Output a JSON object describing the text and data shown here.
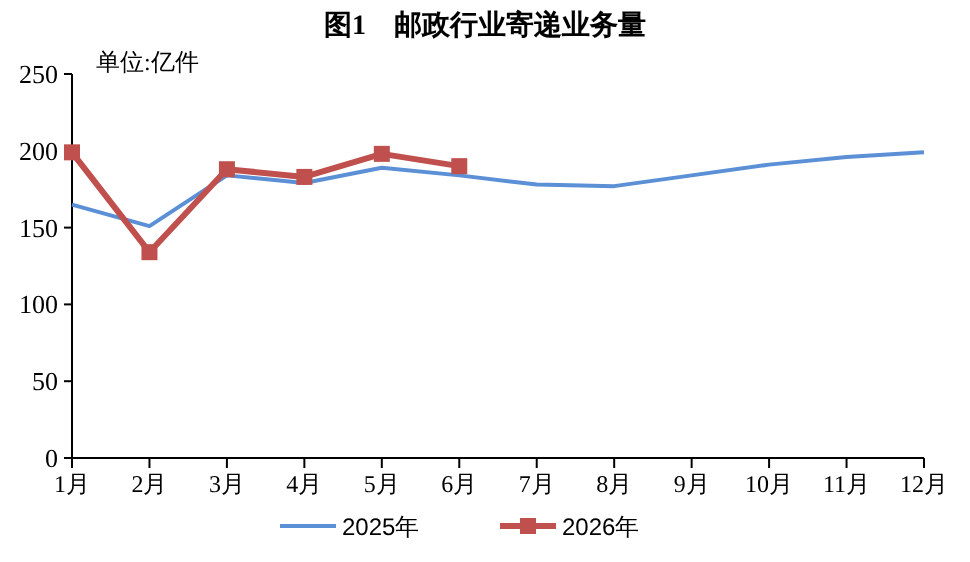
{
  "chart_data": {
    "type": "line",
    "title": "图1　邮政行业寄递业务量",
    "ylabel": "单位:亿件",
    "categories": [
      "1月",
      "2月",
      "3月",
      "4月",
      "5月",
      "6月",
      "7月",
      "8月",
      "9月",
      "10月",
      "11月",
      "12月"
    ],
    "series": [
      {
        "name": "2025年",
        "color": "#5b8fd6",
        "marker": "none",
        "values": [
          165,
          151,
          184,
          179,
          189,
          184,
          178,
          177,
          184,
          191,
          196,
          199
        ]
      },
      {
        "name": "2026年",
        "color": "#c0504d",
        "marker": "square",
        "values": [
          199,
          134,
          188,
          183,
          198,
          190,
          null,
          null,
          null,
          null,
          null,
          null
        ]
      }
    ],
    "ylim": [
      0,
      250
    ],
    "yticks": [
      0,
      50,
      100,
      150,
      200,
      250
    ],
    "grid": false,
    "legend": "bottom"
  }
}
